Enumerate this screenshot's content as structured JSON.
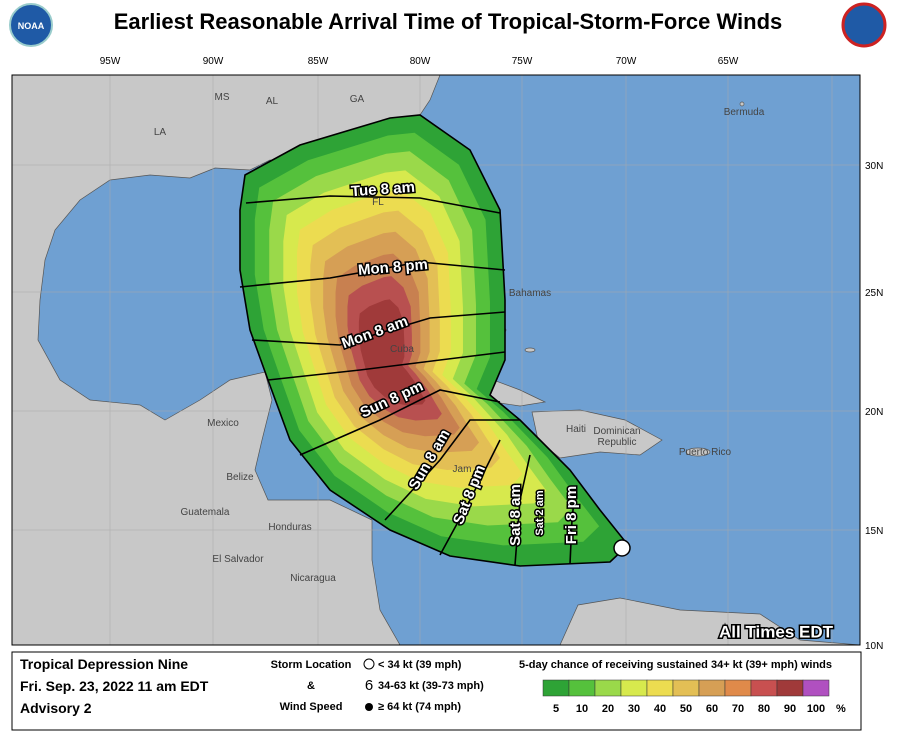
{
  "header": {
    "title": "Earliest Reasonable Arrival Time of Tropical-Storm-Force Winds",
    "logo": "NOAA"
  },
  "map": {
    "longitudes": [
      "95W",
      "90W",
      "85W",
      "80W",
      "75W",
      "70W",
      "65W"
    ],
    "latitudes": [
      "30N",
      "25N",
      "20N",
      "15N",
      "10N"
    ],
    "places": [
      "MS",
      "AL",
      "GA",
      "LA",
      "FL",
      "Bermuda",
      "Bahamas",
      "Cuba",
      "Mexico",
      "Haiti",
      "Dominican",
      "Republic",
      "Puerto Rico",
      "Jam",
      "Belize",
      "Guatemala",
      "Honduras",
      "El Salvador",
      "Nicaragua"
    ],
    "arrival_times": [
      "Tue 8 am",
      "Mon 8 pm",
      "Mon 8 am",
      "Sun 8 pm",
      "Sun 8 am",
      "Sat 8 pm",
      "Sat 8 am",
      "Sat 2 am",
      "Fri 8 pm"
    ],
    "note": "All Times EDT"
  },
  "legend": {
    "storm": [
      "Tropical Depression Nine",
      "Fri. Sep. 23, 2022  11 am EDT",
      "Advisory 2"
    ],
    "symbols_title": [
      "Storm Location",
      "&",
      "Wind Speed"
    ],
    "symbols": [
      "< 34 kt (39 mph)",
      "34-63 kt (39-73 mph)",
      "≥ 64 kt (74 mph)"
    ],
    "scale_title": "5-day chance of receiving sustained 34+ kt (39+ mph) winds",
    "scale": [
      5,
      10,
      20,
      30,
      40,
      50,
      60,
      70,
      80,
      90,
      100
    ],
    "percent": "%"
  }
}
